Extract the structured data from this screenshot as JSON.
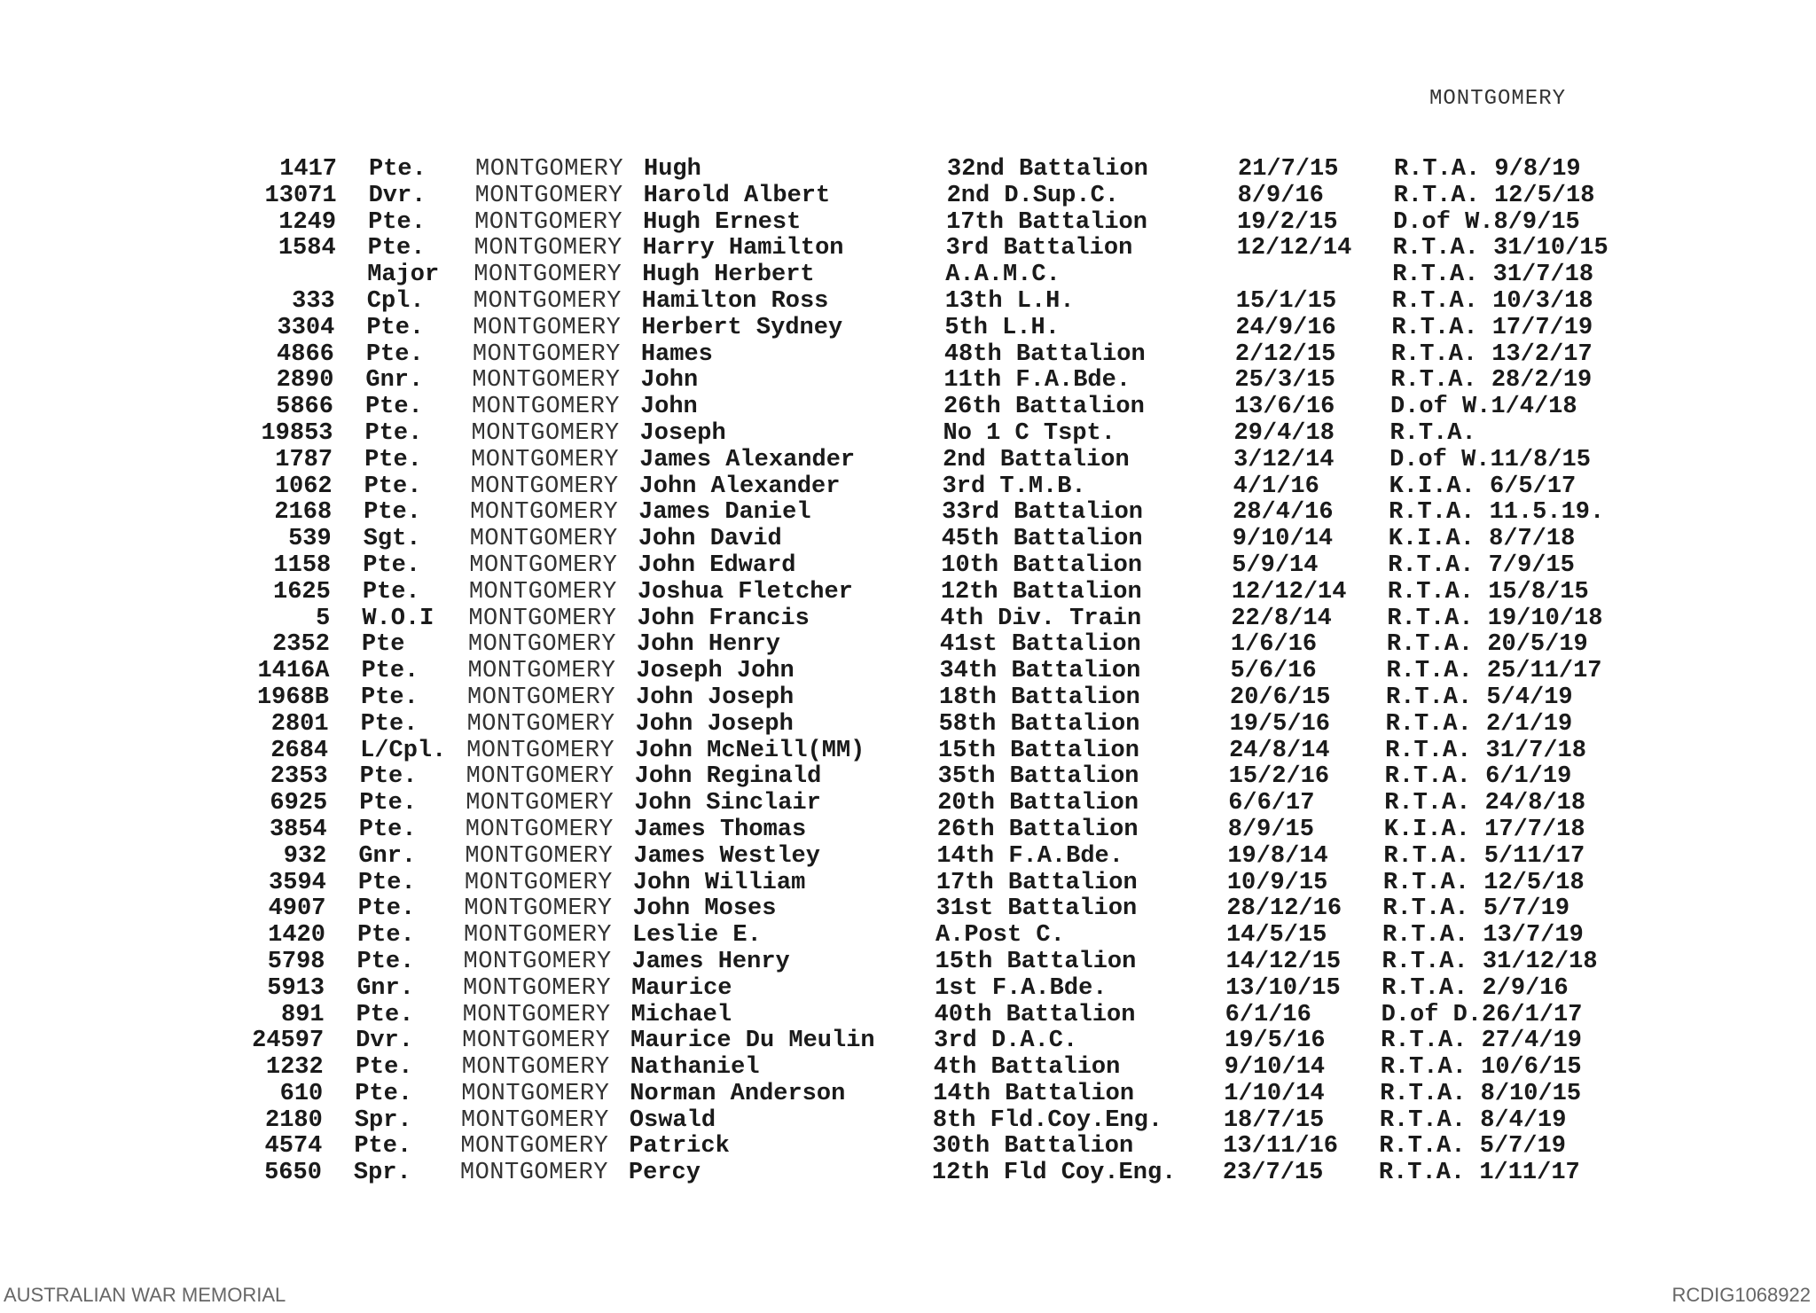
{
  "header": {
    "title": "MONTGOMERY"
  },
  "records": [
    [
      "1417",
      "Pte.",
      "MONTGOMERY",
      "Hugh",
      "32nd Battalion",
      "21/7/15",
      "R.T.A. 9/8/19"
    ],
    [
      "13071",
      "Dvr.",
      "MONTGOMERY",
      "Harold Albert",
      "2nd D.Sup.C.",
      "8/9/16",
      "R.T.A. 12/5/18"
    ],
    [
      "1249",
      "Pte.",
      "MONTGOMERY",
      "Hugh Ernest",
      "17th Battalion",
      "19/2/15",
      "D.of W.8/9/15"
    ],
    [
      "1584",
      "Pte.",
      "MONTGOMERY",
      "Harry Hamilton",
      "3rd Battalion",
      "12/12/14",
      "R.T.A. 31/10/15"
    ],
    [
      "",
      "Major",
      "MONTGOMERY",
      "Hugh Herbert",
      "A.A.M.C.",
      "",
      "R.T.A. 31/7/18"
    ],
    [
      "333",
      "Cpl.",
      "MONTGOMERY",
      "Hamilton Ross",
      "13th L.H.",
      "15/1/15",
      "R.T.A. 10/3/18"
    ],
    [
      "3304",
      "Pte.",
      "MONTGOMERY",
      "Herbert Sydney",
      "5th L.H.",
      "24/9/16",
      "R.T.A. 17/7/19"
    ],
    [
      "4866",
      "Pte.",
      "MONTGOMERY",
      "Hames",
      "48th Battalion",
      "2/12/15",
      "R.T.A. 13/2/17"
    ],
    [
      "2890",
      "Gnr.",
      "MONTGOMERY",
      "John",
      "11th F.A.Bde.",
      "25/3/15",
      "R.T.A. 28/2/19"
    ],
    [
      "5866",
      "Pte.",
      "MONTGOMERY",
      "John",
      "26th Battalion",
      "13/6/16",
      "D.of W.1/4/18"
    ],
    [
      "19853",
      "Pte.",
      "MONTGOMERY",
      "Joseph",
      "No 1 C Tspt.",
      "29/4/18",
      "R.T.A."
    ],
    [
      "1787",
      "Pte.",
      "MONTGOMERY",
      "James Alexander",
      "2nd Battalion",
      "3/12/14",
      "D.of W.11/8/15"
    ],
    [
      "1062",
      "Pte.",
      "MONTGOMERY",
      "John Alexander",
      "3rd T.M.B.",
      "4/1/16",
      "K.I.A. 6/5/17"
    ],
    [
      "2168",
      "Pte.",
      "MONTGOMERY",
      "James Daniel",
      "33rd Battalion",
      "28/4/16",
      "R.T.A. 11.5.19."
    ],
    [
      "539",
      "Sgt.",
      "MONTGOMERY",
      "John David",
      "45th Battalion",
      "9/10/14",
      "K.I.A. 8/7/18"
    ],
    [
      "1158",
      "Pte.",
      "MONTGOMERY",
      "John Edward",
      "10th Battalion",
      "5/9/14",
      "R.T.A. 7/9/15"
    ],
    [
      "1625",
      "Pte.",
      "MONTGOMERY",
      "Joshua Fletcher",
      "12th Battalion",
      "12/12/14",
      "R.T.A. 15/8/15"
    ],
    [
      "5",
      "W.O.I",
      "MONTGOMERY",
      "John Francis",
      "4th Div. Train",
      "22/8/14",
      "R.T.A. 19/10/18"
    ],
    [
      "2352",
      "Pte",
      "MONTGOMERY",
      "John Henry",
      "41st Battalion",
      "1/6/16",
      "R.T.A. 20/5/19"
    ],
    [
      "1416A",
      "Pte.",
      "MONTGOMERY",
      "Joseph John",
      "34th Battalion",
      "5/6/16",
      "R.T.A. 25/11/17"
    ],
    [
      "1968B",
      "Pte.",
      "MONTGOMERY",
      "John Joseph",
      "18th Battalion",
      "20/6/15",
      "R.T.A. 5/4/19"
    ],
    [
      "2801",
      "Pte.",
      "MONTGOMERY",
      "John Joseph",
      "58th Battalion",
      "19/5/16",
      "R.T.A. 2/1/19"
    ],
    [
      "2684",
      "L/Cpl.",
      "MONTGOMERY",
      "John McNeill(MM)",
      "15th Battalion",
      "24/8/14",
      "R.T.A. 31/7/18"
    ],
    [
      "2353",
      "Pte.",
      "MONTGOMERY",
      "John Reginald",
      "35th Battalion",
      "15/2/16",
      "R.T.A. 6/1/19"
    ],
    [
      "6925",
      "Pte.",
      "MONTGOMERY",
      "John Sinclair",
      "20th Battalion",
      "6/6/17",
      "R.T.A. 24/8/18"
    ],
    [
      "3854",
      "Pte.",
      "MONTGOMERY",
      "James Thomas",
      "26th Battalion",
      "8/9/15",
      "K.I.A. 17/7/18"
    ],
    [
      "932",
      "Gnr.",
      "MONTGOMERY",
      "James Westley",
      "14th F.A.Bde.",
      "19/8/14",
      "R.T.A. 5/11/17"
    ],
    [
      "3594",
      "Pte.",
      "MONTGOMERY",
      "John William",
      "17th Battalion",
      "10/9/15",
      "R.T.A. 12/5/18"
    ],
    [
      "4907",
      "Pte.",
      "MONTGOMERY",
      "John Moses",
      "31st Battalion",
      "28/12/16",
      "R.T.A. 5/7/19"
    ],
    [
      "1420",
      "Pte.",
      "MONTGOMERY",
      "Leslie E.",
      "A.Post C.",
      "14/5/15",
      "R.T.A. 13/7/19"
    ],
    [
      "5798",
      "Pte.",
      "MONTGOMERY",
      "James Henry",
      "15th Battalion",
      "14/12/15",
      "R.T.A. 31/12/18"
    ],
    [
      "5913",
      "Gnr.",
      "MONTGOMERY",
      "Maurice",
      "1st F.A.Bde.",
      "13/10/15",
      "R.T.A. 2/9/16"
    ],
    [
      "891",
      "Pte.",
      "MONTGOMERY",
      "Michael",
      "40th Battalion",
      "6/1/16",
      "D.of D.26/1/17"
    ],
    [
      "24597",
      "Dvr.",
      "MONTGOMERY",
      "Maurice Du Meulin",
      "3rd D.A.C.",
      "19/5/16",
      "R.T.A. 27/4/19"
    ],
    [
      "1232",
      "Pte.",
      "MONTGOMERY",
      "Nathaniel",
      "4th Battalion",
      "9/10/14",
      "R.T.A. 10/6/15"
    ],
    [
      "610",
      "Pte.",
      "MONTGOMERY",
      "Norman Anderson",
      "14th Battalion",
      "1/10/14",
      "R.T.A. 8/10/15"
    ],
    [
      "2180",
      "Spr.",
      "MONTGOMERY",
      "Oswald",
      "8th Fld.Coy.Eng.",
      "18/7/15",
      "R.T.A. 8/4/19"
    ],
    [
      "4574",
      "Pte.",
      "MONTGOMERY",
      "Patrick",
      "30th Battalion",
      "13/11/16",
      "R.T.A. 5/7/19"
    ],
    [
      "5650",
      "Spr.",
      "MONTGOMERY",
      "Percy",
      "12th Fld Coy.Eng.",
      "23/7/15",
      "R.T.A. 1/11/17"
    ]
  ],
  "footer": {
    "left": "AUSTRALIAN WAR MEMORIAL",
    "right": "RCDIG1068922"
  }
}
